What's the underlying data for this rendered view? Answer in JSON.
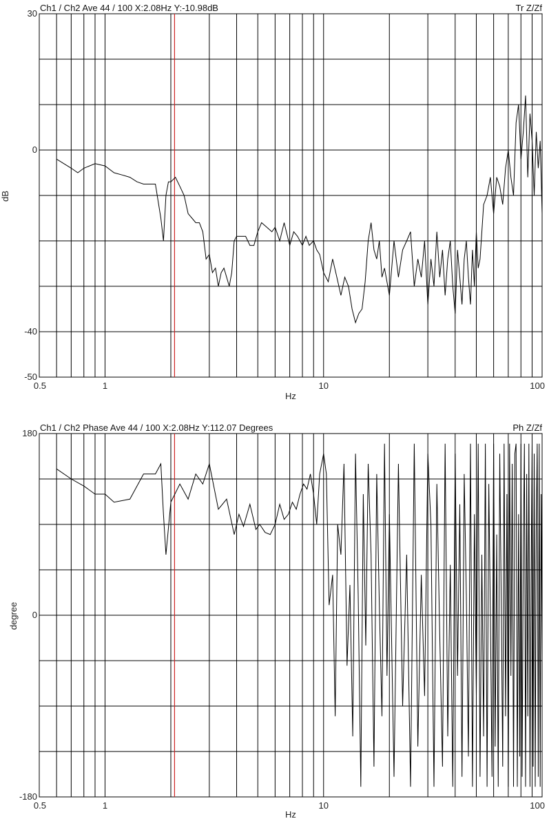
{
  "chart_data": [
    {
      "type": "line",
      "header_left": "Ch1 / Ch2  Ave 44 / 100  X:2.08Hz  Y:-10.98dB",
      "header_right": "Tr Z/Zf",
      "xlabel": "Hz",
      "ylabel": "dB",
      "x_scale": "log",
      "xlim": [
        0.5,
        100
      ],
      "ylim": [
        -50,
        30
      ],
      "xtick_labels": [
        {
          "value": 0.5,
          "label": "0.5"
        },
        {
          "value": 1,
          "label": "1"
        },
        {
          "value": 10,
          "label": "10"
        },
        {
          "value": 100,
          "label": "100"
        }
      ],
      "ytick_labels": [
        {
          "value": 30,
          "label": "30"
        },
        {
          "value": 0,
          "label": "0"
        },
        {
          "value": -40,
          "label": "-40"
        },
        {
          "value": -50,
          "label": "-50"
        }
      ],
      "grid": true,
      "cursor_x": 2.08,
      "cursor_color": "#cc2222",
      "line_color": "#000000",
      "x": [
        0.6,
        0.7,
        0.75,
        0.8,
        0.9,
        1.0,
        1.1,
        1.2,
        1.3,
        1.4,
        1.5,
        1.6,
        1.7,
        1.8,
        1.85,
        1.9,
        1.95,
        2.0,
        2.1,
        2.2,
        2.3,
        2.4,
        2.5,
        2.6,
        2.7,
        2.8,
        2.9,
        3.0,
        3.1,
        3.2,
        3.3,
        3.4,
        3.5,
        3.6,
        3.7,
        3.8,
        3.9,
        4.0,
        4.2,
        4.4,
        4.6,
        4.8,
        5.0,
        5.2,
        5.5,
        5.8,
        6.0,
        6.3,
        6.6,
        7.0,
        7.3,
        7.6,
        8.0,
        8.3,
        8.6,
        9.0,
        9.3,
        9.6,
        10.0,
        10.5,
        11.0,
        11.5,
        12.0,
        12.5,
        13.0,
        13.5,
        14.0,
        14.5,
        15.0,
        15.5,
        16.0,
        16.5,
        17.0,
        17.5,
        18.0,
        18.5,
        19.0,
        20.0,
        21.0,
        22.0,
        23.0,
        24.0,
        25.0,
        26.0,
        27.0,
        28.0,
        29.0,
        30.0,
        31.0,
        32.0,
        33.0,
        34.0,
        35.0,
        36.0,
        37.0,
        38.0,
        39.0,
        40.0,
        41.0,
        42.0,
        43.0,
        44.0,
        45.0,
        46.0,
        47.0,
        48.0,
        49.0,
        50.0,
        51.0,
        52.0,
        54.0,
        56.0,
        58.0,
        60.0,
        62.0,
        64.0,
        66.0,
        68.0,
        70.0,
        72.0,
        74.0,
        76.0,
        78.0,
        80.0,
        82.0,
        84.0,
        86.0,
        88.0,
        90.0,
        92.0,
        94.0,
        96.0,
        98.0,
        100.0
      ],
      "y": [
        -2,
        -4,
        -5,
        -4,
        -3,
        -3.5,
        -5,
        -5.5,
        -6,
        -7,
        -7.5,
        -7.5,
        -7.5,
        -15,
        -20,
        -10,
        -7,
        -7,
        -6,
        -8,
        -10,
        -14,
        -15,
        -16,
        -16,
        -18,
        -24,
        -23,
        -27,
        -26,
        -30,
        -27,
        -26,
        -28,
        -30,
        -27,
        -20,
        -19,
        -19,
        -19,
        -21,
        -21,
        -18,
        -16,
        -17,
        -18,
        -17,
        -20,
        -16,
        -21,
        -18,
        -19,
        -21,
        -19,
        -21,
        -20,
        -22,
        -23,
        -27,
        -29,
        -24,
        -28,
        -32,
        -28,
        -30,
        -35,
        -38,
        -36,
        -35,
        -29,
        -20,
        -16,
        -22,
        -24,
        -20,
        -28,
        -26,
        -32,
        -20,
        -28,
        -22,
        -20,
        -18,
        -30,
        -24,
        -28,
        -20,
        -34,
        -24,
        -30,
        -18,
        -28,
        -22,
        -32,
        -24,
        -20,
        -30,
        -36,
        -22,
        -28,
        -34,
        -24,
        -20,
        -28,
        -34,
        -22,
        -30,
        -18,
        -26,
        -24,
        -12,
        -10,
        -6,
        -14,
        -6,
        -8,
        -12,
        -4,
        0,
        -6,
        -10,
        6,
        10,
        -2,
        4,
        12,
        -6,
        8,
        2,
        -10,
        4,
        -4,
        2,
        -14
      ]
    },
    {
      "type": "line",
      "header_left": "Ch1 / Ch2  Phase Ave 44 / 100  X:2.08Hz  Y:112.07 Degrees",
      "header_right": "Ph Z/Zf",
      "xlabel": "Hz",
      "ylabel": "degree",
      "x_scale": "log",
      "xlim": [
        0.5,
        100
      ],
      "ylim": [
        -180,
        180
      ],
      "xtick_labels": [
        {
          "value": 0.5,
          "label": "0.5"
        },
        {
          "value": 1,
          "label": "1"
        },
        {
          "value": 10,
          "label": "10"
        },
        {
          "value": 100,
          "label": "100"
        }
      ],
      "ytick_labels": [
        {
          "value": 180,
          "label": "180"
        },
        {
          "value": 0,
          "label": "0"
        },
        {
          "value": -180,
          "label": "-180"
        }
      ],
      "grid": true,
      "cursor_x": 2.08,
      "cursor_color": "#cc2222",
      "line_color": "#000000",
      "x": [
        0.6,
        0.7,
        0.8,
        0.9,
        1.0,
        1.1,
        1.3,
        1.5,
        1.7,
        1.8,
        1.85,
        1.9,
        2.0,
        2.2,
        2.4,
        2.6,
        2.8,
        3.0,
        3.3,
        3.6,
        3.9,
        4.1,
        4.3,
        4.6,
        4.9,
        5.1,
        5.4,
        5.7,
        6.0,
        6.3,
        6.6,
        6.9,
        7.2,
        7.5,
        7.8,
        8.1,
        8.4,
        8.7,
        9.0,
        9.3,
        9.6,
        10.0,
        10.3,
        10.6,
        11.0,
        11.3,
        11.6,
        12.0,
        12.4,
        12.8,
        13.2,
        13.6,
        14.0,
        14.4,
        14.8,
        15.2,
        15.6,
        16.0,
        16.5,
        17.0,
        17.5,
        18.0,
        18.5,
        19.0,
        19.5,
        20.0,
        21.0,
        22.0,
        23.0,
        24.0,
        25.0,
        26.0,
        27.0,
        28.0,
        29.0,
        30.0,
        31.0,
        32.0,
        33.0,
        34.0,
        35.0,
        36.0,
        37.0,
        38.0,
        39.0,
        40.0,
        41.0,
        42.0,
        43.0,
        44.0,
        45.0,
        46.0,
        47.0,
        48.0,
        49.0,
        50.0,
        51.0,
        52.0,
        53.0,
        54.0,
        55.0,
        56.0,
        57.0,
        58.0,
        59.0,
        60.0,
        61.0,
        62.0,
        63.0,
        64.0,
        65.0,
        66.0,
        67.0,
        68.0,
        69.0,
        70.0,
        71.0,
        72.0,
        73.0,
        74.0,
        75.0,
        76.0,
        77.0,
        78.0,
        79.0,
        80.0,
        81.0,
        82.0,
        83.0,
        84.0,
        85.0,
        86.0,
        87.0,
        88.0,
        89.0,
        90.0,
        91.0,
        92.0,
        93.0,
        94.0,
        95.0,
        96.0,
        97.0,
        98.0,
        99.0,
        100.0
      ],
      "y": [
        145,
        135,
        128,
        120,
        120,
        112,
        115,
        140,
        140,
        150,
        100,
        60,
        112,
        130,
        115,
        140,
        130,
        150,
        105,
        115,
        80,
        100,
        88,
        110,
        85,
        90,
        82,
        80,
        90,
        110,
        95,
        100,
        112,
        105,
        120,
        130,
        125,
        140,
        120,
        90,
        140,
        160,
        140,
        10,
        40,
        -100,
        90,
        60,
        150,
        -50,
        30,
        -120,
        160,
        20,
        -170,
        120,
        -30,
        150,
        60,
        -150,
        140,
        10,
        -100,
        170,
        -60,
        100,
        -160,
        150,
        -90,
        60,
        -170,
        170,
        -130,
        40,
        -80,
        160,
        90,
        -170,
        130,
        -20,
        -150,
        170,
        -120,
        50,
        -170,
        160,
        -60,
        110,
        -160,
        140,
        20,
        -140,
        170,
        -170,
        100,
        -80,
        170,
        -160,
        60,
        -120,
        170,
        -170,
        130,
        0,
        -160,
        170,
        -130,
        80,
        -170,
        160,
        20,
        -150,
        170,
        -100,
        120,
        -170,
        170,
        -60,
        150,
        -170,
        160,
        170,
        -170,
        100,
        -140,
        170,
        -160,
        60,
        170,
        -170,
        140,
        -100,
        170,
        -170,
        30,
        170,
        -150,
        160,
        -170,
        90,
        170,
        -160,
        170,
        -170,
        120,
        -40
      ]
    }
  ]
}
